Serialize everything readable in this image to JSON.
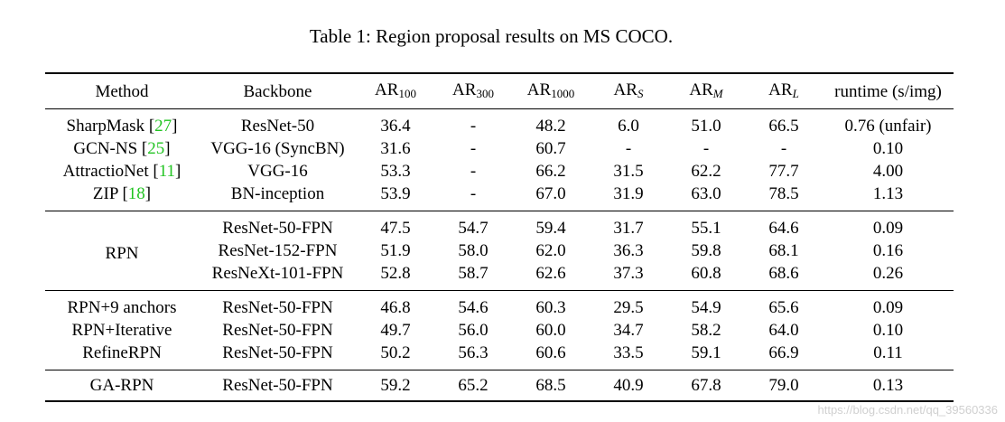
{
  "caption": "Table 1: Region proposal results on MS COCO.",
  "header": {
    "method": "Method",
    "backbone": "Backbone",
    "ar100": {
      "base": "AR",
      "sub": "100"
    },
    "ar300": {
      "base": "AR",
      "sub": "300"
    },
    "ar1000": {
      "base": "AR",
      "sub": "1000"
    },
    "ars": {
      "base": "AR",
      "sub": "S"
    },
    "arm": {
      "base": "AR",
      "sub": "M"
    },
    "arl": {
      "base": "AR",
      "sub": "L"
    },
    "runtime": "runtime (s/img)"
  },
  "groups": [
    {
      "rows": [
        {
          "method": "SharpMask",
          "ref": "27",
          "backbone": "ResNet-50",
          "ar100": "36.4",
          "ar300": "-",
          "ar1000": "48.2",
          "ars": "6.0",
          "arm": "51.0",
          "arl": "66.5",
          "runtime": "0.76 (unfair)"
        },
        {
          "method": "GCN-NS",
          "ref": "25",
          "backbone": "VGG-16 (SyncBN)",
          "ar100": "31.6",
          "ar300": "-",
          "ar1000": "60.7",
          "ars": "-",
          "arm": "-",
          "arl": "-",
          "runtime": "0.10"
        },
        {
          "method": "AttractioNet",
          "ref": "11",
          "backbone": "VGG-16",
          "ar100": "53.3",
          "ar300": "-",
          "ar1000": "66.2",
          "ars": "31.5",
          "arm": "62.2",
          "arl": "77.7",
          "runtime": "4.00"
        },
        {
          "method": "ZIP",
          "ref": "18",
          "backbone": "BN-inception",
          "ar100": "53.9",
          "ar300": "-",
          "ar1000": "67.0",
          "ars": "31.9",
          "arm": "63.0",
          "arl": "78.5",
          "runtime": "1.13"
        }
      ]
    },
    {
      "method": "RPN",
      "rows": [
        {
          "backbone": "ResNet-50-FPN",
          "ar100": "47.5",
          "ar300": "54.7",
          "ar1000": "59.4",
          "ars": "31.7",
          "arm": "55.1",
          "arl": "64.6",
          "runtime": "0.09"
        },
        {
          "backbone": "ResNet-152-FPN",
          "ar100": "51.9",
          "ar300": "58.0",
          "ar1000": "62.0",
          "ars": "36.3",
          "arm": "59.8",
          "arl": "68.1",
          "runtime": "0.16"
        },
        {
          "backbone": "ResNeXt-101-FPN",
          "ar100": "52.8",
          "ar300": "58.7",
          "ar1000": "62.6",
          "ars": "37.3",
          "arm": "60.8",
          "arl": "68.6",
          "runtime": "0.26"
        }
      ]
    },
    {
      "rows": [
        {
          "method": "RPN+9 anchors",
          "backbone": "ResNet-50-FPN",
          "ar100": "46.8",
          "ar300": "54.6",
          "ar1000": "60.3",
          "ars": "29.5",
          "arm": "54.9",
          "arl": "65.6",
          "runtime": "0.09"
        },
        {
          "method": "RPN+Iterative",
          "backbone": "ResNet-50-FPN",
          "ar100": "49.7",
          "ar300": "56.0",
          "ar1000": "60.0",
          "ars": "34.7",
          "arm": "58.2",
          "arl": "64.0",
          "runtime": "0.10"
        },
        {
          "method": "RefineRPN",
          "backbone": "ResNet-50-FPN",
          "ar100": "50.2",
          "ar300": "56.3",
          "ar1000": "60.6",
          "ars": "33.5",
          "arm": "59.1",
          "arl": "66.9",
          "runtime": "0.11"
        }
      ]
    },
    {
      "rows": [
        {
          "method": "GA-RPN",
          "backbone": "ResNet-50-FPN",
          "ar100": "59.2",
          "ar300": "65.2",
          "ar1000": "68.5",
          "ars": "40.9",
          "arm": "67.8",
          "arl": "79.0",
          "runtime": "0.13"
        }
      ]
    }
  ],
  "watermark": "https://blog.csdn.net/qq_39560336",
  "colors": {
    "citation": "#22c422",
    "watermark": "#d0d0d0"
  }
}
